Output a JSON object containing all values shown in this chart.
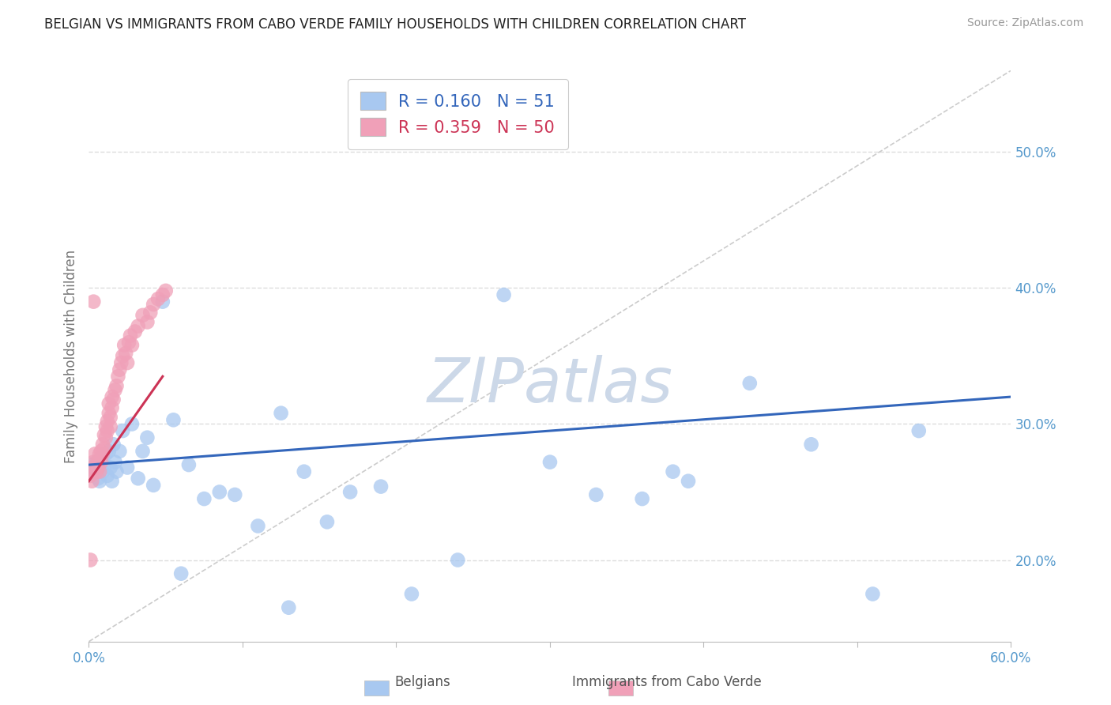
{
  "title": "BELGIAN VS IMMIGRANTS FROM CABO VERDE FAMILY HOUSEHOLDS WITH CHILDREN CORRELATION CHART",
  "source": "Source: ZipAtlas.com",
  "ylabel": "Family Households with Children",
  "xlim": [
    0.0,
    0.6
  ],
  "ylim": [
    0.14,
    0.56
  ],
  "xticks": [
    0.0,
    0.1,
    0.2,
    0.3,
    0.4,
    0.5,
    0.6
  ],
  "xtick_labels": [
    "0.0%",
    "",
    "",
    "",
    "",
    "",
    "60.0%"
  ],
  "ytick_labels_right": [
    "20.0%",
    "30.0%",
    "40.0%",
    "50.0%"
  ],
  "yticks_right": [
    0.2,
    0.3,
    0.4,
    0.5
  ],
  "belgian_R": 0.16,
  "belgian_N": 51,
  "caboverde_R": 0.359,
  "caboverde_N": 50,
  "belgian_color": "#a8c8f0",
  "caboverde_color": "#f0a0b8",
  "belgian_line_color": "#3366bb",
  "caboverde_line_color": "#cc3355",
  "ref_line_color": "#cccccc",
  "watermark": "ZIPatlas",
  "watermark_color": "#ccd8e8",
  "title_fontsize": 12,
  "axis_label_color": "#5599cc",
  "ylabel_color": "#777777",
  "background_color": "#ffffff",
  "grid_color": "#dddddd",
  "belgians_x": [
    0.002,
    0.003,
    0.004,
    0.005,
    0.006,
    0.007,
    0.008,
    0.009,
    0.01,
    0.011,
    0.012,
    0.013,
    0.014,
    0.015,
    0.016,
    0.017,
    0.018,
    0.02,
    0.022,
    0.025,
    0.028,
    0.032,
    0.035,
    0.038,
    0.042,
    0.048,
    0.055,
    0.065,
    0.075,
    0.085,
    0.095,
    0.11,
    0.125,
    0.14,
    0.155,
    0.17,
    0.19,
    0.21,
    0.24,
    0.27,
    0.3,
    0.33,
    0.36,
    0.39,
    0.43,
    0.47,
    0.51,
    0.54,
    0.13,
    0.38,
    0.06
  ],
  "belgians_y": [
    0.27,
    0.268,
    0.265,
    0.272,
    0.26,
    0.258,
    0.275,
    0.265,
    0.27,
    0.278,
    0.262,
    0.28,
    0.268,
    0.258,
    0.285,
    0.272,
    0.265,
    0.28,
    0.295,
    0.268,
    0.3,
    0.26,
    0.28,
    0.29,
    0.255,
    0.39,
    0.303,
    0.27,
    0.245,
    0.25,
    0.248,
    0.225,
    0.308,
    0.265,
    0.228,
    0.25,
    0.254,
    0.175,
    0.2,
    0.395,
    0.272,
    0.248,
    0.245,
    0.258,
    0.33,
    0.285,
    0.175,
    0.295,
    0.165,
    0.265,
    0.19
  ],
  "caboverde_x": [
    0.001,
    0.002,
    0.003,
    0.004,
    0.005,
    0.006,
    0.006,
    0.007,
    0.007,
    0.008,
    0.008,
    0.009,
    0.009,
    0.01,
    0.01,
    0.011,
    0.011,
    0.012,
    0.012,
    0.013,
    0.013,
    0.014,
    0.014,
    0.015,
    0.015,
    0.016,
    0.017,
    0.018,
    0.019,
    0.02,
    0.021,
    0.022,
    0.023,
    0.024,
    0.025,
    0.026,
    0.027,
    0.028,
    0.03,
    0.032,
    0.035,
    0.038,
    0.04,
    0.042,
    0.045,
    0.048,
    0.05,
    0.001,
    0.002,
    0.003
  ],
  "caboverde_y": [
    0.2,
    0.268,
    0.272,
    0.278,
    0.265,
    0.272,
    0.268,
    0.278,
    0.265,
    0.28,
    0.272,
    0.285,
    0.278,
    0.282,
    0.292,
    0.298,
    0.29,
    0.295,
    0.302,
    0.308,
    0.315,
    0.298,
    0.305,
    0.312,
    0.32,
    0.318,
    0.325,
    0.328,
    0.335,
    0.34,
    0.345,
    0.35,
    0.358,
    0.352,
    0.345,
    0.36,
    0.365,
    0.358,
    0.368,
    0.372,
    0.38,
    0.375,
    0.382,
    0.388,
    0.392,
    0.395,
    0.398,
    0.262,
    0.258,
    0.39
  ],
  "bel_trend_x0": 0.0,
  "bel_trend_y0": 0.27,
  "bel_trend_x1": 0.6,
  "bel_trend_y1": 0.32,
  "cv_trend_x0": 0.0,
  "cv_trend_y0": 0.258,
  "cv_trend_x1": 0.048,
  "cv_trend_y1": 0.335,
  "ref_line_x0": 0.0,
  "ref_line_y0": 0.14,
  "ref_line_x1": 0.6,
  "ref_line_y1": 0.56
}
